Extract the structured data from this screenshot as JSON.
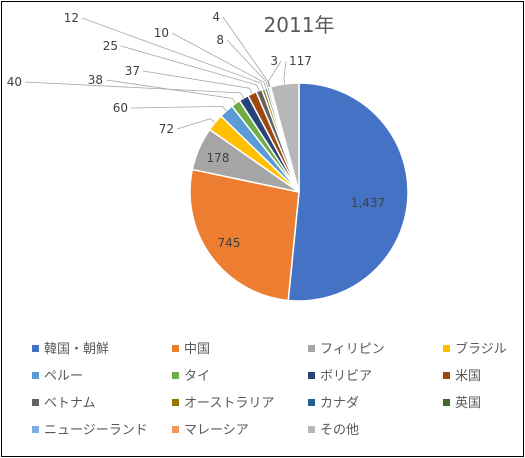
{
  "chart_data": {
    "type": "pie",
    "title": "2011年",
    "legend_position": "bottom",
    "slices": [
      {
        "name": "韓国・朝鮮",
        "value": 1437,
        "label": "1,437",
        "color": "#4472c4"
      },
      {
        "name": "中国",
        "value": 745,
        "label": "745",
        "color": "#ed7d31"
      },
      {
        "name": "フィリピン",
        "value": 178,
        "label": "178",
        "color": "#a5a5a5"
      },
      {
        "name": "ブラジル",
        "value": 72,
        "label": "72",
        "color": "#ffc000"
      },
      {
        "name": "ペルー",
        "value": 60,
        "label": "60",
        "color": "#5b9bd5"
      },
      {
        "name": "タイ",
        "value": 38,
        "label": "38",
        "color": "#70ad47"
      },
      {
        "name": "ボリビア",
        "value": 40,
        "label": "40",
        "color": "#264478"
      },
      {
        "name": "米国",
        "value": 37,
        "label": "37",
        "color": "#9e480e"
      },
      {
        "name": "ベトナム",
        "value": 25,
        "label": "25",
        "color": "#636363"
      },
      {
        "name": "オーストラリア",
        "value": 12,
        "label": "12",
        "color": "#997300"
      },
      {
        "name": "カナダ",
        "value": 10,
        "label": "10",
        "color": "#255e91"
      },
      {
        "name": "英国",
        "value": 8,
        "label": "8",
        "color": "#43682b"
      },
      {
        "name": "ニュージーランド",
        "value": 4,
        "label": "4",
        "color": "#7cafdd"
      },
      {
        "name": "マレーシア",
        "value": 3,
        "label": "3",
        "color": "#f1975a"
      },
      {
        "name": "その他",
        "value": 117,
        "label": "117",
        "color": "#b7b7b7"
      }
    ]
  }
}
